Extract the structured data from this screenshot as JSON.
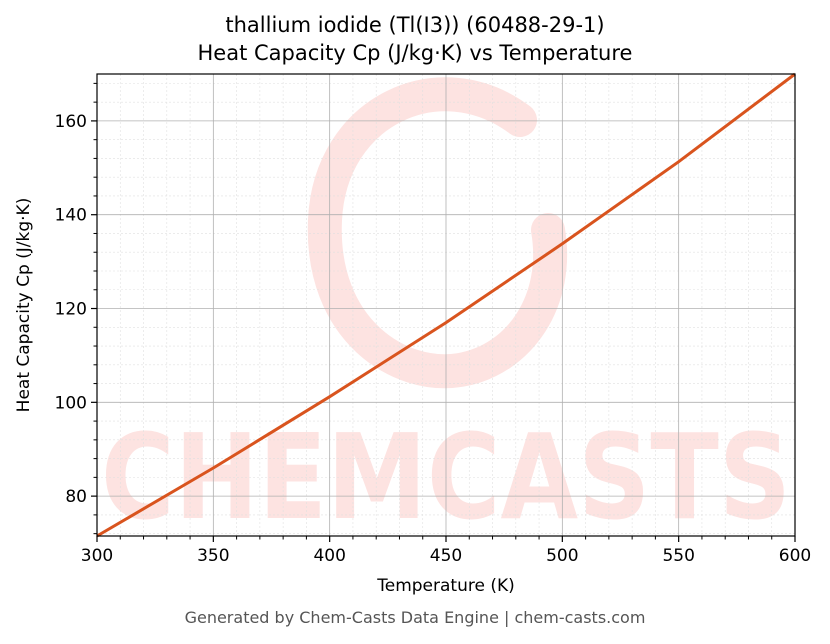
{
  "colors": {
    "line": "#d9541e",
    "watermark": "#fde3e1",
    "grid_major": "#b0b0b0",
    "grid_minor": "#e0e0e0",
    "footer_text": "#555555"
  },
  "chart_data": {
    "type": "line",
    "title": "thallium iodide (Tl(I3)) (60488-29-1)",
    "subtitle": "Heat Capacity Cp (J/kg·K) vs Temperature",
    "xlabel": "Temperature (K)",
    "ylabel": "Heat Capacity Cp (J/kg·K)",
    "xlim": [
      300,
      600
    ],
    "ylim": [
      71.5,
      170
    ],
    "xticks": [
      300,
      350,
      400,
      450,
      500,
      550,
      600
    ],
    "yticks": [
      80,
      100,
      120,
      140,
      160
    ],
    "grid": true,
    "series": [
      {
        "x": [
          300,
          350,
          400,
          450,
          500,
          550,
          600
        ],
        "y": [
          71.5,
          86.0,
          101.2,
          117.0,
          133.8,
          151.3,
          170.0
        ]
      }
    ]
  },
  "watermark": "CHEMCASTS",
  "footer": "Generated by Chem-Casts Data Engine | chem-casts.com"
}
